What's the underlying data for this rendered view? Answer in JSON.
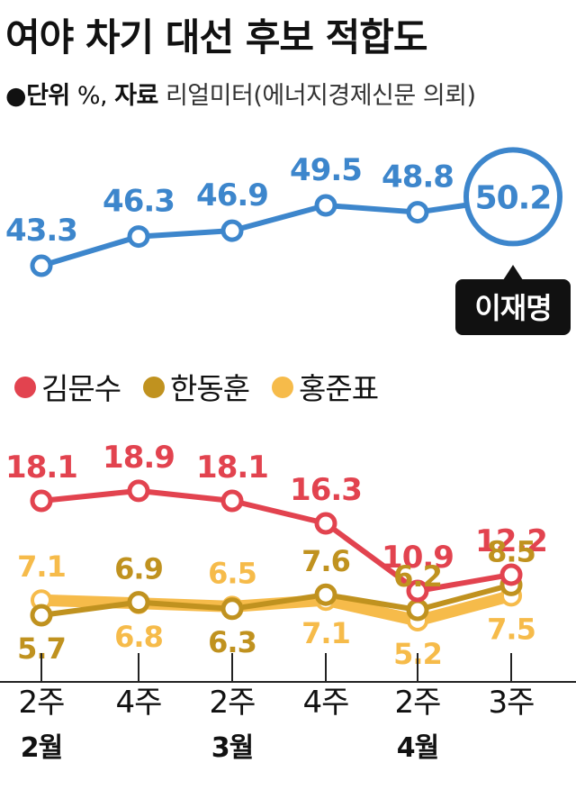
{
  "title": "여야 차기 대선 후보 적합도",
  "subtitle": {
    "bullet": "●",
    "unit_label": "단위",
    "unit": "%,",
    "source_label": "자료",
    "source": "리얼미터(에너지경제신문 의뢰)"
  },
  "callout": "이재명",
  "legend": [
    {
      "name": "김문수",
      "color": "#e2434f"
    },
    {
      "name": "한동훈",
      "color": "#c0921f"
    },
    {
      "name": "홍준표",
      "color": "#f6bb4a"
    }
  ],
  "colors": {
    "leader": "#3d86cc",
    "axis": "#222222"
  },
  "chart_data": {
    "type": "line",
    "categories": [
      "2주",
      "4주",
      "2주",
      "4주",
      "2주",
      "3주"
    ],
    "month_labels": [
      {
        "label": "2월",
        "index": 0
      },
      {
        "label": "3월",
        "index": 2
      },
      {
        "label": "4월",
        "index": 4
      }
    ],
    "series": [
      {
        "name": "이재명",
        "color": "#3d86cc",
        "values": [
          43.3,
          46.3,
          46.9,
          49.5,
          48.8,
          50.2
        ],
        "labels": [
          "43.3",
          "46.3",
          "46.9",
          "49.5",
          "48.8",
          "50.2"
        ]
      },
      {
        "name": "김문수",
        "color": "#e2434f",
        "values": [
          18.1,
          18.9,
          18.1,
          16.3,
          10.9,
          12.2
        ],
        "labels": [
          "18.1",
          "18.9",
          "18.1",
          "16.3",
          "10.9",
          "12.2"
        ]
      },
      {
        "name": "한동훈",
        "color": "#c0921f",
        "values": [
          5.7,
          6.9,
          6.3,
          7.6,
          6.2,
          8.5
        ],
        "labels": [
          "5.7",
          "6.9",
          "6.3",
          "7.6",
          "6.2",
          "8.5"
        ]
      },
      {
        "name": "홍준표",
        "color": "#f6bb4a",
        "values": [
          7.1,
          6.8,
          6.5,
          7.1,
          5.2,
          7.5
        ],
        "labels": [
          "7.1",
          "6.8",
          "6.5",
          "7.1",
          "5.2",
          "7.5"
        ]
      }
    ]
  }
}
